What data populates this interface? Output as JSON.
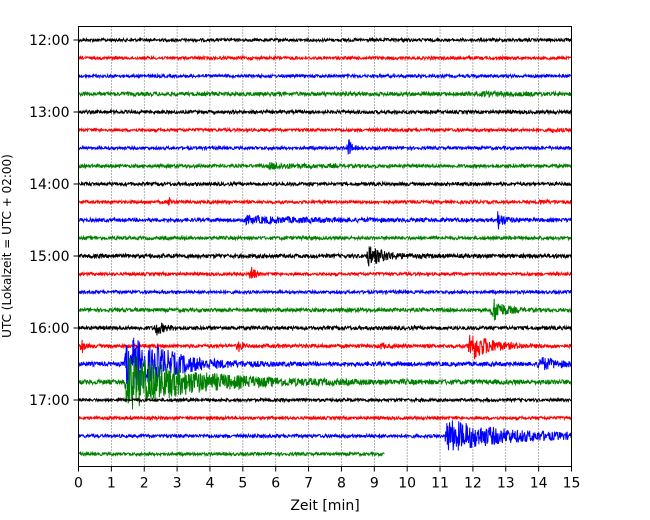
{
  "chart_data": {
    "type": "line",
    "title": "",
    "xlabel": "Zeit  [min]",
    "ylabel": "UTC (Lokalzeit = UTC + 02:00)",
    "xlim": [
      0,
      15
    ],
    "x_ticks": [
      "0",
      "1",
      "2",
      "3",
      "4",
      "5",
      "6",
      "7",
      "8",
      "9",
      "10",
      "11",
      "12",
      "13",
      "14",
      "15"
    ],
    "y_ticks": [
      {
        "label": "12:00",
        "trace": 0
      },
      {
        "label": "13:00",
        "trace": 4
      },
      {
        "label": "14:00",
        "trace": 8
      },
      {
        "label": "15:00",
        "trace": 12
      },
      {
        "label": "16:00",
        "trace": 16
      },
      {
        "label": "17:00",
        "trace": 20
      }
    ],
    "grid": "vertical dotted",
    "trace_minutes": 15,
    "traces": [
      {
        "start": "12:00",
        "color": "#000000",
        "noise": 1.0,
        "end_min": 15,
        "events": []
      },
      {
        "start": "12:15",
        "color": "#ff0000",
        "noise": 1.0,
        "end_min": 15,
        "events": []
      },
      {
        "start": "12:30",
        "color": "#0000ff",
        "noise": 1.0,
        "end_min": 15,
        "events": []
      },
      {
        "start": "12:45",
        "color": "#008000",
        "noise": 1.3,
        "end_min": 15,
        "events": [
          {
            "t": 12.3,
            "amp": 1.5,
            "dur": 1.5
          }
        ]
      },
      {
        "start": "13:00",
        "color": "#000000",
        "noise": 1.1,
        "end_min": 15,
        "events": []
      },
      {
        "start": "13:15",
        "color": "#ff0000",
        "noise": 1.0,
        "end_min": 15,
        "events": [
          {
            "t": 14.4,
            "amp": 1.5,
            "dur": 0.4
          }
        ]
      },
      {
        "start": "13:30",
        "color": "#0000ff",
        "noise": 1.0,
        "end_min": 15,
        "events": [
          {
            "t": 8.2,
            "amp": 11,
            "dur": 0.15
          }
        ]
      },
      {
        "start": "13:45",
        "color": "#008000",
        "noise": 1.1,
        "end_min": 15,
        "events": [
          {
            "t": 5.8,
            "amp": 2.5,
            "dur": 1.5
          }
        ]
      },
      {
        "start": "14:00",
        "color": "#000000",
        "noise": 1.1,
        "end_min": 15,
        "events": []
      },
      {
        "start": "14:15",
        "color": "#ff0000",
        "noise": 1.0,
        "end_min": 15,
        "events": [
          {
            "t": 2.75,
            "amp": 7,
            "dur": 0.1
          },
          {
            "t": 14.0,
            "amp": 1.5,
            "dur": 0.8
          }
        ]
      },
      {
        "start": "14:30",
        "color": "#0000ff",
        "noise": 1.2,
        "end_min": 15,
        "events": [
          {
            "t": 5.0,
            "amp": 3,
            "dur": 3.5
          },
          {
            "t": 12.75,
            "amp": 9,
            "dur": 0.3
          }
        ]
      },
      {
        "start": "14:45",
        "color": "#008000",
        "noise": 1.1,
        "end_min": 15,
        "events": []
      },
      {
        "start": "15:00",
        "color": "#000000",
        "noise": 1.3,
        "end_min": 15,
        "events": [
          {
            "t": 8.8,
            "amp": 10,
            "dur": 0.8
          }
        ]
      },
      {
        "start": "15:15",
        "color": "#ff0000",
        "noise": 1.0,
        "end_min": 15,
        "events": [
          {
            "t": 5.25,
            "amp": 10,
            "dur": 0.15
          }
        ]
      },
      {
        "start": "15:30",
        "color": "#0000ff",
        "noise": 1.0,
        "end_min": 15,
        "events": []
      },
      {
        "start": "15:45",
        "color": "#008000",
        "noise": 1.2,
        "end_min": 15,
        "events": [
          {
            "t": 12.6,
            "amp": 13,
            "dur": 0.5
          }
        ]
      },
      {
        "start": "16:00",
        "color": "#000000",
        "noise": 1.2,
        "end_min": 15,
        "events": [
          {
            "t": 2.35,
            "amp": 7,
            "dur": 0.4
          }
        ]
      },
      {
        "start": "16:15",
        "color": "#ff0000",
        "noise": 1.2,
        "end_min": 15,
        "events": [
          {
            "t": 0.1,
            "amp": 8,
            "dur": 0.1
          },
          {
            "t": 4.85,
            "amp": 7,
            "dur": 0.15
          },
          {
            "t": 9.2,
            "amp": 3,
            "dur": 0.15
          },
          {
            "t": 11.9,
            "amp": 16,
            "dur": 0.9
          }
        ]
      },
      {
        "start": "16:30",
        "color": "#0000ff",
        "noise": 1.4,
        "end_min": 15,
        "events": [
          {
            "t": 1.45,
            "amp": 30,
            "dur": 1.8
          },
          {
            "t": 2.3,
            "amp": 5,
            "dur": 1.0
          },
          {
            "t": 14.0,
            "amp": 7,
            "dur": 0.8
          }
        ]
      },
      {
        "start": "16:45",
        "color": "#008000",
        "noise": 1.6,
        "end_min": 15,
        "events": [
          {
            "t": 1.45,
            "amp": 28,
            "dur": 3.0
          }
        ]
      },
      {
        "start": "17:00",
        "color": "#000000",
        "noise": 1.0,
        "end_min": 15,
        "events": []
      },
      {
        "start": "17:15",
        "color": "#ff0000",
        "noise": 1.0,
        "end_min": 15,
        "events": []
      },
      {
        "start": "17:30",
        "color": "#0000ff",
        "noise": 1.1,
        "end_min": 15,
        "events": [
          {
            "t": 11.2,
            "amp": 16,
            "dur": 3.0
          }
        ]
      },
      {
        "start": "17:45",
        "color": "#008000",
        "noise": 1.0,
        "end_min": 9.3,
        "events": []
      }
    ]
  }
}
